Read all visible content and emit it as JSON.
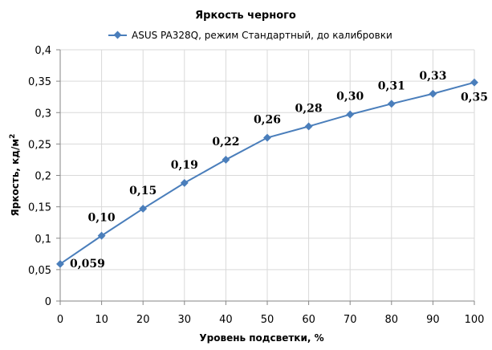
{
  "chart_data": {
    "type": "line",
    "title": "Яркость черного",
    "xlabel": "Уровень подсветки, %",
    "ylabel": "Яркость, кд/м",
    "ylabel_superscript": "2",
    "x": [
      0,
      10,
      20,
      30,
      40,
      50,
      60,
      70,
      80,
      90,
      100
    ],
    "xlim": [
      0,
      100
    ],
    "ylim": [
      0,
      0.4
    ],
    "x_ticks": [
      "0",
      "10",
      "20",
      "30",
      "40",
      "50",
      "60",
      "70",
      "80",
      "90",
      "100"
    ],
    "y_ticks": [
      "0",
      "0,05",
      "0,1",
      "0,15",
      "0,2",
      "0,25",
      "0,3",
      "0,35",
      "0,4"
    ],
    "grid": true,
    "legend_position": "top",
    "series": [
      {
        "name": "ASUS PA328Q, режим Стандартный, до калибровки",
        "color": "#4a7ebb",
        "values": [
          0.059,
          0.104,
          0.147,
          0.188,
          0.225,
          0.26,
          0.278,
          0.297,
          0.314,
          0.33,
          0.348
        ],
        "labels": [
          "0,059",
          "0,10",
          "0,15",
          "0,19",
          "0,22",
          "0,26",
          "0,28",
          "0,30",
          "0,31",
          "0,33",
          "0,35"
        ]
      }
    ]
  }
}
